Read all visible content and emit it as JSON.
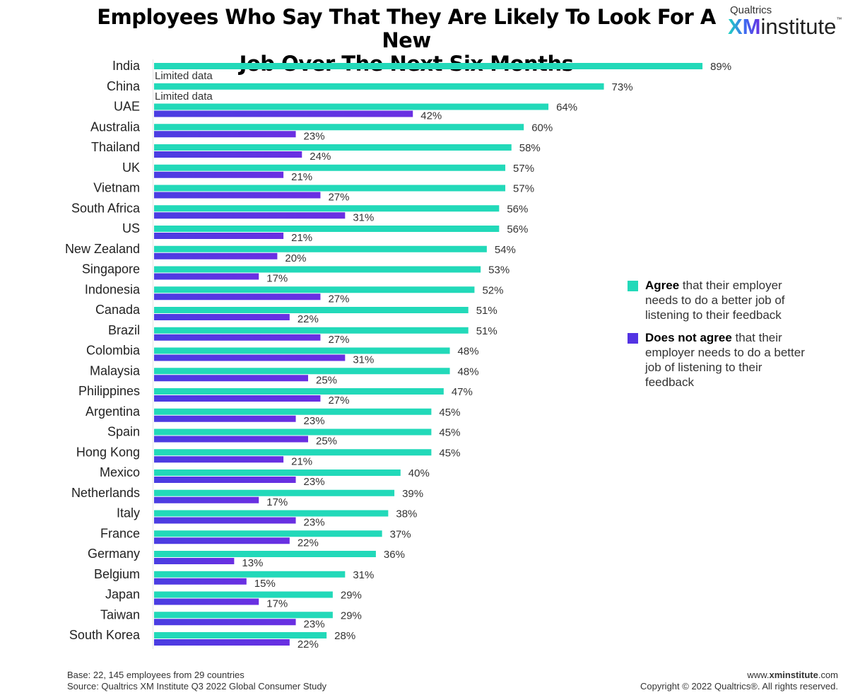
{
  "header": {
    "title_line1": "Employees Who Say That They Are Likely To Look For A New",
    "title_line2": "Job Over The Next Six Months"
  },
  "logo": {
    "brand": "Qualtrics",
    "xm": "XM",
    "institute": "institute",
    "tm": "™"
  },
  "colors": {
    "agree": "#22d9b9",
    "disagree": "#5333e3"
  },
  "chart_data": {
    "type": "bar",
    "orientation": "horizontal",
    "title": "Employees Who Say That They Are Likely To Look For A New Job Over The Next Six Months",
    "categories": [
      "India",
      "China",
      "UAE",
      "Australia",
      "Thailand",
      "UK",
      "Vietnam",
      "South Africa",
      "US",
      "New Zealand",
      "Singapore",
      "Indonesia",
      "Canada",
      "Brazil",
      "Colombia",
      "Malaysia",
      "Philippines",
      "Argentina",
      "Spain",
      "Hong Kong",
      "Mexico",
      "Netherlands",
      "Italy",
      "France",
      "Germany",
      "Belgium",
      "Japan",
      "Taiwan",
      "South Korea"
    ],
    "series": [
      {
        "name": "Agree that their employer needs to do a better job of listening to their feedback",
        "values": [
          89,
          73,
          64,
          60,
          58,
          57,
          57,
          56,
          56,
          54,
          53,
          52,
          51,
          51,
          48,
          48,
          47,
          45,
          45,
          45,
          40,
          39,
          38,
          37,
          36,
          31,
          29,
          29,
          28
        ]
      },
      {
        "name": "Does not agree that their employer needs to do a better job of listening to their feedback",
        "values": [
          null,
          null,
          42,
          23,
          24,
          21,
          27,
          31,
          21,
          20,
          17,
          27,
          22,
          27,
          31,
          25,
          27,
          23,
          25,
          21,
          23,
          17,
          23,
          22,
          13,
          15,
          17,
          23,
          22
        ]
      }
    ],
    "missing_label": "Limited data",
    "value_suffix": "%",
    "xlim": [
      0,
      100
    ],
    "grid": false,
    "legend_position": "right"
  },
  "legend": {
    "agree_bold": "Agree",
    "agree_rest": " that their employer needs to do a better job of listening to their feedback",
    "disagree_bold": "Does not agree",
    "disagree_rest": " that their employer needs to do a better job of listening to their feedback"
  },
  "footer": {
    "base": "Base: 22, 145 employees from 29 countries",
    "source": "Source: Qualtrics XM Institute Q3 2022 Global Consumer Study",
    "url_prefix": "www.",
    "url_bold": "xminstitute",
    ".com": ".com",
    "copyright": "Copyright © 2022 Qualtrics®. All rights reserved."
  }
}
